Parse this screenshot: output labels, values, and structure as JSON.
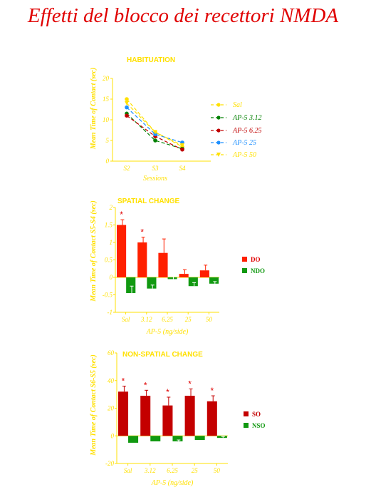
{
  "title": "Effetti del blocco dei recettori NMDA",
  "chart_data": [
    {
      "type": "line",
      "title": "HABITUATION",
      "xlabel": "Sessions",
      "ylabel": "Mean Time of Contact (sec)",
      "categories": [
        "S2",
        "S3",
        "S4"
      ],
      "ylim": [
        0,
        20
      ],
      "yticks": [
        "0",
        "5",
        "10",
        "15",
        "20"
      ],
      "series": [
        {
          "name": "Sal",
          "values": [
            15,
            7,
            3.5
          ],
          "color": "#ffe000",
          "marker": "circle"
        },
        {
          "name": "AP-5  3.12",
          "values": [
            11.5,
            5,
            3
          ],
          "color": "#008000",
          "marker": "circle"
        },
        {
          "name": "AP-5  6.25",
          "values": [
            11,
            6,
            2.8
          ],
          "color": "#c00000",
          "marker": "circle"
        },
        {
          "name": "AP-5  25",
          "values": [
            13,
            6.5,
            4.5
          ],
          "color": "#1e90ff",
          "marker": "circle"
        },
        {
          "name": "AP-5  50",
          "values": [
            14,
            7,
            3.8
          ],
          "color": "#ffe000",
          "marker": "triangle"
        }
      ]
    },
    {
      "type": "bar",
      "title": "SPATIAL  CHANGE",
      "xlabel": "AP-5    (ng/side)",
      "ylabel": "Mean Time of Contact S5-S4 (sec)",
      "categories": [
        "Sal",
        "3.12",
        "6.25",
        "25",
        "50"
      ],
      "ylim": [
        -1,
        2
      ],
      "yticks": [
        "-1",
        "-0.5",
        "0",
        "0.5",
        "1",
        "1.5",
        "2"
      ],
      "series": [
        {
          "name": "DO",
          "values": [
            1.5,
            1.0,
            0.7,
            0.1,
            0.2
          ],
          "errors": [
            0.15,
            0.15,
            0.4,
            0.12,
            0.15
          ],
          "color": "#ff2000",
          "label_color": "#e00000"
        },
        {
          "name": "NDO",
          "values": [
            -0.45,
            -0.32,
            -0.05,
            -0.25,
            -0.18
          ],
          "errors": [
            0.2,
            0.1,
            0.15,
            0.1,
            0.06
          ],
          "color": "#119911",
          "label_color": "#119911"
        }
      ],
      "annotations": [
        {
          "category": "Sal",
          "text": "*"
        },
        {
          "category": "3.12",
          "text": "*"
        }
      ]
    },
    {
      "type": "bar",
      "title": "NON-SPATIAL  CHANGE",
      "xlabel": "AP-5    (ng/side)",
      "ylabel": "Mean Time of Contact S6-S5 (sec)",
      "categories": [
        "Sal",
        "3.12",
        "6.25",
        "25",
        "50"
      ],
      "ylim": [
        -20,
        60
      ],
      "yticks": [
        "-20",
        "0",
        "20",
        "40",
        "60"
      ],
      "series": [
        {
          "name": "SO",
          "values": [
            32,
            29,
            22,
            29,
            25
          ],
          "errors": [
            4,
            4,
            6,
            5,
            4
          ],
          "color": "#c40000",
          "label_color": "#c40000"
        },
        {
          "name": "NSO",
          "values": [
            -5,
            -4,
            -4,
            -3,
            -1.5
          ],
          "errors": [
            0,
            0,
            1,
            0,
            1
          ],
          "color": "#119911",
          "label_color": "#119911"
        }
      ],
      "annotations": [
        {
          "category": "Sal",
          "text": "*"
        },
        {
          "category": "3.12",
          "text": "*"
        },
        {
          "category": "6.25",
          "text": "*"
        },
        {
          "category": "25",
          "text": "*"
        },
        {
          "category": "50",
          "text": "*"
        }
      ]
    }
  ]
}
